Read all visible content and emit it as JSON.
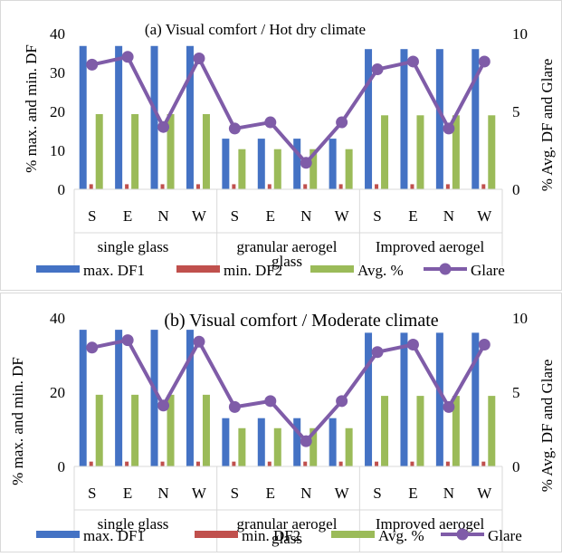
{
  "charts": [
    {
      "type": "bar",
      "title": "(a) Visual comfort / Hot dry climate",
      "ylabel": "% max. and min. DF",
      "y2label": "% Avg. DF and Glare",
      "ylim": [
        0,
        40
      ],
      "yticks": [
        0,
        10,
        20,
        30,
        40
      ],
      "y2lim": [
        0,
        10
      ],
      "y2ticks": [
        0,
        5,
        10
      ],
      "categories": [
        "S",
        "E",
        "N",
        "W",
        "S",
        "E",
        "N",
        "W",
        "S",
        "E",
        "N",
        "W"
      ],
      "groups": [
        "single glass",
        "granular aerogel glass",
        "Improved aerogel"
      ],
      "series": [
        {
          "name": "max. DF1",
          "axis": "left",
          "kind": "bar",
          "color": "#4472C4",
          "values": [
            36.8,
            36.8,
            36.8,
            36.8,
            13,
            13,
            13,
            13,
            36,
            36,
            36,
            36
          ]
        },
        {
          "name": "min. DF2",
          "axis": "left",
          "kind": "bar",
          "color": "#C0504D",
          "values": [
            1.3,
            1.3,
            1.3,
            1.3,
            1.3,
            1.3,
            1.3,
            1.3,
            1.3,
            1.3,
            1.3,
            1.3
          ]
        },
        {
          "name": "Avg. %",
          "axis": "left",
          "kind": "bar",
          "color": "#9BBB59",
          "values": [
            19.3,
            19.3,
            19.3,
            19.3,
            10.3,
            10.3,
            10.3,
            10.3,
            19,
            19,
            19,
            19
          ]
        },
        {
          "name": "Glare",
          "axis": "right",
          "kind": "line",
          "color": "#7F5CA8",
          "values": [
            8,
            8.5,
            4,
            8.4,
            3.9,
            4.3,
            1.7,
            4.3,
            7.7,
            8.2,
            3.9,
            8.2
          ]
        }
      ],
      "legend": "bottom"
    },
    {
      "type": "bar",
      "title": "(b) Visual comfort / Moderate climate",
      "ylabel": "% max. and min. DF",
      "y2label": "% Avg. DF and Glare",
      "ylim": [
        0,
        40
      ],
      "yticks": [
        0,
        20,
        40
      ],
      "y2lim": [
        0,
        10
      ],
      "y2ticks": [
        0,
        5,
        10
      ],
      "categories": [
        "S",
        "E",
        "N",
        "W",
        "S",
        "E",
        "N",
        "W",
        "S",
        "E",
        "N",
        "W"
      ],
      "groups": [
        "single glass",
        "granular aerogel glass",
        "Improved aerogel"
      ],
      "series": [
        {
          "name": "max. DF1",
          "axis": "left",
          "kind": "bar",
          "color": "#4472C4",
          "values": [
            36.8,
            36.8,
            36.8,
            36.8,
            13,
            13,
            13,
            13,
            36,
            36,
            36,
            36
          ]
        },
        {
          "name": "min. DF2",
          "axis": "left",
          "kind": "bar",
          "color": "#C0504D",
          "values": [
            1.3,
            1.3,
            1.3,
            1.3,
            1.3,
            1.3,
            1.3,
            1.3,
            1.3,
            1.3,
            1.3,
            1.3
          ]
        },
        {
          "name": "Avg. %",
          "axis": "left",
          "kind": "bar",
          "color": "#9BBB59",
          "values": [
            19.3,
            19.3,
            19.3,
            19.3,
            10.3,
            10.3,
            10.3,
            10.3,
            19,
            19,
            19,
            19
          ]
        },
        {
          "name": "Glare",
          "axis": "right",
          "kind": "line",
          "color": "#7F5CA8",
          "values": [
            8,
            8.5,
            4.1,
            8.4,
            4,
            4.4,
            1.7,
            4.4,
            7.7,
            8.2,
            4,
            8.2
          ]
        }
      ],
      "legend": "bottom"
    }
  ],
  "chart_data": [
    {
      "type": "bar",
      "title": "(a) Visual comfort / Hot dry climate",
      "ylabel": "% max. and min. DF",
      "y2label": "% Avg. DF and Glare",
      "ylim": [
        0,
        40
      ],
      "y2lim": [
        0,
        10
      ],
      "categories": [
        "S",
        "E",
        "N",
        "W",
        "S",
        "E",
        "N",
        "W",
        "S",
        "E",
        "N",
        "W"
      ],
      "groups": [
        "single glass",
        "granular aerogel glass",
        "Improved aerogel"
      ],
      "series": [
        {
          "name": "max. DF1",
          "values": [
            36.8,
            36.8,
            36.8,
            36.8,
            13,
            13,
            13,
            13,
            36,
            36,
            36,
            36
          ]
        },
        {
          "name": "min. DF2",
          "values": [
            1.3,
            1.3,
            1.3,
            1.3,
            1.3,
            1.3,
            1.3,
            1.3,
            1.3,
            1.3,
            1.3,
            1.3
          ]
        },
        {
          "name": "Avg. %",
          "values": [
            19.3,
            19.3,
            19.3,
            19.3,
            10.3,
            10.3,
            10.3,
            10.3,
            19,
            19,
            19,
            19
          ]
        },
        {
          "name": "Glare",
          "values": [
            8,
            8.5,
            4,
            8.4,
            3.9,
            4.3,
            1.7,
            4.3,
            7.7,
            8.2,
            3.9,
            8.2
          ]
        }
      ]
    },
    {
      "type": "bar",
      "title": "(b) Visual comfort / Moderate climate",
      "ylabel": "% max. and min. DF",
      "y2label": "% Avg. DF and Glare",
      "ylim": [
        0,
        40
      ],
      "y2lim": [
        0,
        10
      ],
      "categories": [
        "S",
        "E",
        "N",
        "W",
        "S",
        "E",
        "N",
        "W",
        "S",
        "E",
        "N",
        "W"
      ],
      "groups": [
        "single glass",
        "granular aerogel glass",
        "Improved aerogel"
      ],
      "series": [
        {
          "name": "max. DF1",
          "values": [
            36.8,
            36.8,
            36.8,
            36.8,
            13,
            13,
            13,
            13,
            36,
            36,
            36,
            36
          ]
        },
        {
          "name": "min. DF2",
          "values": [
            1.3,
            1.3,
            1.3,
            1.3,
            1.3,
            1.3,
            1.3,
            1.3,
            1.3,
            1.3,
            1.3,
            1.3
          ]
        },
        {
          "name": "Avg. %",
          "values": [
            19.3,
            19.3,
            19.3,
            19.3,
            10.3,
            10.3,
            10.3,
            10.3,
            19,
            19,
            19,
            19
          ]
        },
        {
          "name": "Glare",
          "values": [
            8,
            8.5,
            4.1,
            8.4,
            4,
            4.4,
            1.7,
            4.4,
            7.7,
            8.2,
            4,
            8.2
          ]
        }
      ]
    }
  ]
}
